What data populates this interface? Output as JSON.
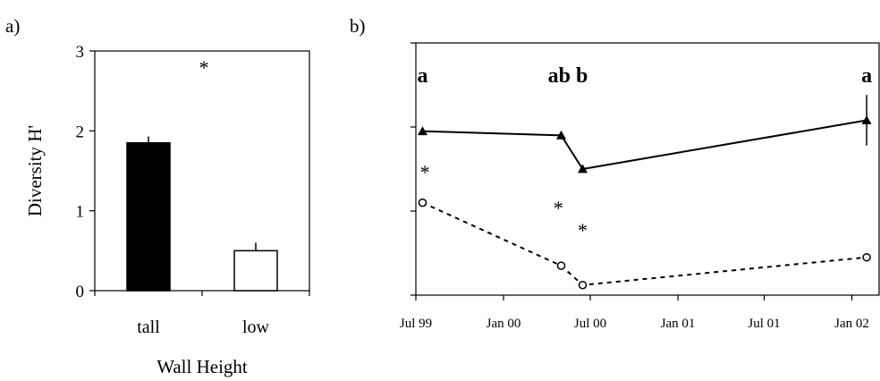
{
  "panel_labels": {
    "a": "a)",
    "b": "b)"
  },
  "chart_data": [
    {
      "type": "bar",
      "categories": [
        "tall",
        "low"
      ],
      "values": [
        1.85,
        0.5
      ],
      "errors": [
        0.08,
        0.1
      ],
      "bar_colors": [
        "#000000",
        "#ffffff"
      ],
      "xlabel": "Wall Height",
      "ylabel": "Diversity H'",
      "ylim": [
        0,
        3
      ],
      "yticks": [
        "0",
        "1",
        "2",
        "3"
      ],
      "annotation": "*"
    },
    {
      "type": "line",
      "xlim": [
        "1999-07-01",
        "2002-03-01"
      ],
      "xticks": [
        "Jul 99",
        "Jan 00",
        "Jul 00",
        "Jan 01",
        "Jul 01",
        "Jan 02"
      ],
      "xtick_dates": [
        "1999-07-01",
        "2000-01-01",
        "2000-07-01",
        "2001-01-01",
        "2001-07-01",
        "2002-01-01"
      ],
      "grid": false,
      "series": [
        {
          "marker": "triangle",
          "line_style": "solid",
          "points": [
            {
              "x": "1999-07-15",
              "y": 1.95
            },
            {
              "x": "2000-05-01",
              "y": 1.9
            },
            {
              "x": "2000-06-15",
              "y": 1.5
            },
            {
              "x": "2002-02-01",
              "y": 2.08,
              "error": 0.3
            }
          ]
        },
        {
          "marker": "circle",
          "line_style": "dashed",
          "points": [
            {
              "x": "1999-07-15",
              "y": 1.1
            },
            {
              "x": "2000-05-01",
              "y": 0.35
            },
            {
              "x": "2000-06-15",
              "y": 0.12
            },
            {
              "x": "2002-02-01",
              "y": 0.45
            }
          ]
        }
      ],
      "group_letters": [
        {
          "x": "1999-07-15",
          "text": "a"
        },
        {
          "x": "2000-05-15",
          "text": "ab b"
        },
        {
          "x": "2002-02-01",
          "text": "a"
        }
      ],
      "significance_marks": [
        {
          "x": "1999-07-20",
          "text": "*"
        },
        {
          "x": "2000-04-25",
          "text": "*"
        },
        {
          "x": "2000-06-15",
          "text": "*"
        }
      ]
    }
  ]
}
